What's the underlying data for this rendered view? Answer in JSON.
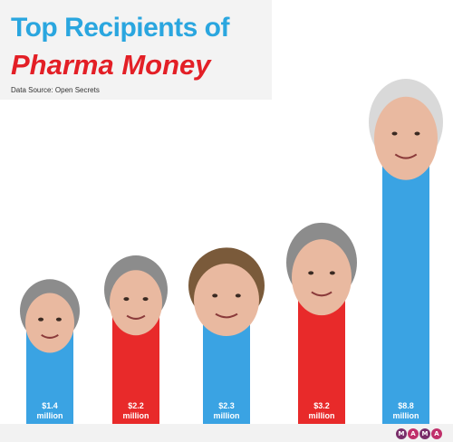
{
  "header": {
    "title_line1": "Top Recipients of",
    "title_line2": "Pharma Money",
    "source": "Data Source: Open Secrets"
  },
  "colors": {
    "blue": "#3aa3e3",
    "red": "#e82a2a",
    "title_blue": "#2aa6df",
    "title_red": "#e31f26"
  },
  "chart_data": {
    "type": "bar",
    "title": "Top Recipients of Pharma Money",
    "xlabel": "",
    "ylabel": "",
    "ylim": [
      0,
      8.8
    ],
    "grid": false,
    "categories": [
      "",
      "",
      "",
      "",
      ""
    ],
    "values": [
      1.4,
      2.2,
      2.3,
      3.2,
      8.8
    ],
    "value_labels": [
      "$1.4\nmillion",
      "$2.2\nmillion",
      "$2.3\nmillion",
      "$3.2\nmillion",
      "$8.8\nmillion"
    ],
    "bar_colors": [
      "#3aa3e3",
      "#e82a2a",
      "#3aa3e3",
      "#e82a2a",
      "#3aa3e3"
    ],
    "bar_icons": [
      "portrait-photo",
      "portrait-photo",
      "portrait-photo",
      "portrait-photo",
      "portrait-photo"
    ]
  },
  "logo": {
    "letters": [
      "M",
      "A",
      "M",
      "A"
    ]
  }
}
